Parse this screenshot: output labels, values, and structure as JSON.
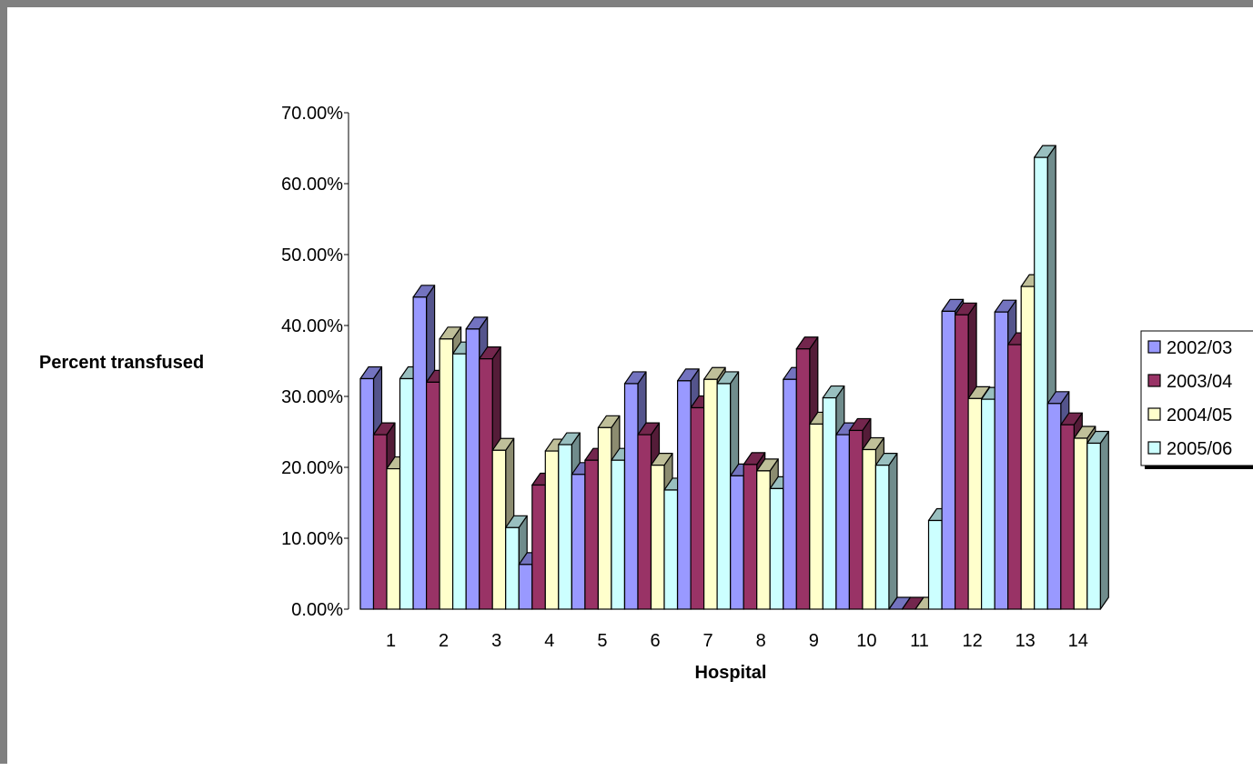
{
  "chart_data": {
    "type": "bar",
    "style": "3d-clustered-column",
    "title": "",
    "xlabel": "Hospital",
    "ylabel": "Percent transfused",
    "ylim": [
      0,
      70
    ],
    "ytick_values": [
      0,
      10,
      20,
      30,
      40,
      50,
      60,
      70
    ],
    "ytick_labels": [
      "0.00%",
      "10.00%",
      "20.00%",
      "30.00%",
      "40.00%",
      "50.00%",
      "60.00%",
      "70.00%"
    ],
    "categories": [
      "1",
      "2",
      "3",
      "4",
      "5",
      "6",
      "7",
      "8",
      "9",
      "10",
      "11",
      "12",
      "13",
      "14"
    ],
    "grid": false,
    "legend_position": "right",
    "series": [
      {
        "name": "2002/03",
        "color": "#9999ff",
        "values": [
          32.5,
          44.0,
          39.5,
          6.3,
          19.0,
          31.8,
          32.2,
          18.8,
          32.4,
          24.6,
          0.0,
          42.0,
          41.9,
          29.0
        ]
      },
      {
        "name": "2003/04",
        "color": "#993366",
        "values": [
          24.6,
          32.0,
          35.3,
          17.5,
          21.0,
          24.6,
          28.4,
          20.4,
          36.7,
          25.2,
          0.0,
          41.5,
          37.3,
          26.0
        ]
      },
      {
        "name": "2004/05",
        "color": "#ffffcc",
        "values": [
          19.8,
          38.1,
          22.4,
          22.3,
          25.6,
          20.3,
          32.4,
          19.5,
          26.1,
          22.5,
          0.0,
          29.7,
          45.5,
          24.1
        ]
      },
      {
        "name": "2005/06",
        "color": "#ccffff",
        "values": [
          32.5,
          36.0,
          11.5,
          23.2,
          21.0,
          16.8,
          31.8,
          17.0,
          29.8,
          20.3,
          12.5,
          29.6,
          63.7,
          23.4
        ]
      }
    ]
  }
}
